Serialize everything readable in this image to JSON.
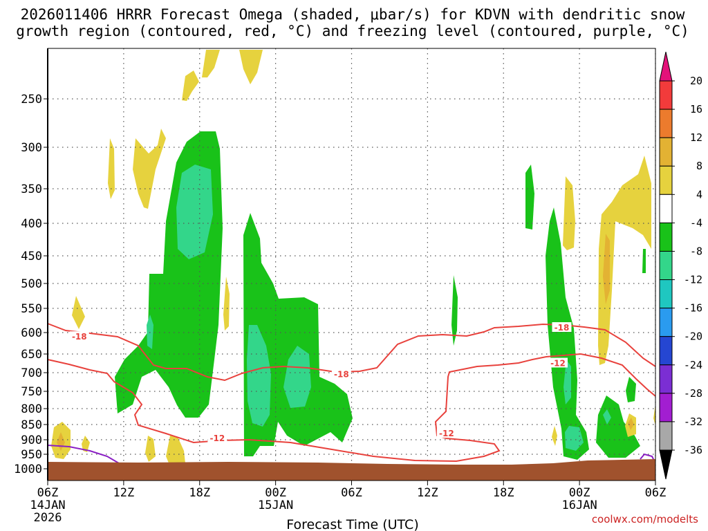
{
  "chart_data": {
    "type": "time-height cross section",
    "title_line1": "2026011406 HRRR Forecast Omega (shaded, μbar/s) for KDVN with dendritic snow",
    "title_line2": "growth region (contoured, red, °C) and freezing level (contoured, purple, °C)",
    "xlabel": "Forecast Time (UTC)",
    "credit": "coolwx.com/modelts",
    "y_ticks": [
      "250",
      "300",
      "350",
      "400",
      "450",
      "500",
      "550",
      "600",
      "650",
      "700",
      "750",
      "800",
      "850",
      "900",
      "950",
      "1000"
    ],
    "y_values": [
      250,
      300,
      350,
      400,
      450,
      500,
      550,
      600,
      650,
      700,
      750,
      800,
      850,
      900,
      950,
      1000
    ],
    "x_ticks": [
      {
        "hour": 0,
        "label": "06Z",
        "date1": "14JAN",
        "date2": "2026"
      },
      {
        "hour": 6,
        "label": "12Z",
        "date1": "",
        "date2": ""
      },
      {
        "hour": 12,
        "label": "18Z",
        "date1": "",
        "date2": ""
      },
      {
        "hour": 18,
        "label": "00Z",
        "date1": "15JAN",
        "date2": ""
      },
      {
        "hour": 24,
        "label": "06Z",
        "date1": "",
        "date2": ""
      },
      {
        "hour": 30,
        "label": "12Z",
        "date1": "",
        "date2": ""
      },
      {
        "hour": 36,
        "label": "18Z",
        "date1": "",
        "date2": ""
      },
      {
        "hour": 42,
        "label": "00Z",
        "date1": "16JAN",
        "date2": ""
      },
      {
        "hour": 48,
        "label": "06Z",
        "date1": "",
        "date2": ""
      }
    ],
    "contour_labels": [
      {
        "text": "-18",
        "hour": 2.5,
        "p": 610
      },
      {
        "text": "-18",
        "hour": 23.2,
        "p": 705
      },
      {
        "text": "-18",
        "hour": 40.6,
        "p": 590
      },
      {
        "text": "-12",
        "hour": 40.3,
        "p": 675
      },
      {
        "text": "-12",
        "hour": 13.4,
        "p": 895
      },
      {
        "text": "-12",
        "hour": 31.5,
        "p": 880
      }
    ],
    "colorbar": {
      "labels": [
        "20",
        "16",
        "12",
        "8",
        "4",
        "-4",
        "-8",
        "-12",
        "-16",
        "-20",
        "-24",
        "-28",
        "-32",
        "-36"
      ],
      "colors": [
        "#f23b3b",
        "#ec7b2d",
        "#e3b233",
        "#e6d23e",
        "#ffffff",
        "#19c219",
        "#33d68a",
        "#1fc7c0",
        "#2a9bef",
        "#2546d2",
        "#7b2ed3",
        "#a21ed1",
        "#a8a8a8"
      ],
      "top_color": "#e4127a",
      "bottom_color": "#000000"
    },
    "colors": {
      "omega_neg4": "#19c219",
      "omega_neg8": "#33d68a",
      "omega_pos4": "#e6d23e",
      "omega_pos8": "#e3b233",
      "dgz_contour": "#e8413c",
      "freezing_contour": "#8a1fc4",
      "terrain": "#a0522d"
    }
  }
}
